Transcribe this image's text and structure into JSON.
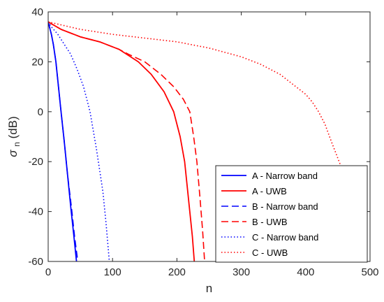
{
  "chart_data": {
    "type": "line",
    "xlabel": "n",
    "ylabel": {
      "main": "σ",
      "sub": "n",
      "suffix": "(dB)"
    },
    "xlim": [
      0,
      500
    ],
    "ylim": [
      -60,
      40
    ],
    "xticks": [
      0,
      100,
      200,
      300,
      400,
      500
    ],
    "yticks": [
      -60,
      -40,
      -20,
      0,
      20,
      40
    ],
    "grid": false,
    "legend_position": "lower-right",
    "series": [
      {
        "name": "A - Narrow band",
        "color": "#0000FF",
        "style": "solid",
        "x": [
          0,
          2,
          5,
          8,
          12,
          16,
          20,
          25,
          30,
          35,
          40,
          44
        ],
        "y": [
          36,
          34,
          31,
          27,
          20,
          10,
          0,
          -12,
          -25,
          -38,
          -50,
          -60
        ]
      },
      {
        "name": "A - UWB",
        "color": "#FF0000",
        "style": "solid",
        "x": [
          0,
          20,
          50,
          80,
          110,
          140,
          160,
          180,
          195,
          205,
          212,
          216,
          220,
          224,
          227
        ],
        "y": [
          36,
          33,
          30,
          28,
          25,
          20,
          15,
          8,
          0,
          -10,
          -20,
          -30,
          -40,
          -50,
          -60
        ]
      },
      {
        "name": "B - Narrow band",
        "color": "#0000FF",
        "style": "dashed",
        "x": [
          0,
          2,
          5,
          8,
          12,
          16,
          20,
          25,
          30,
          36,
          41,
          46
        ],
        "y": [
          36,
          34,
          31,
          27,
          20,
          10,
          0,
          -12,
          -25,
          -38,
          -50,
          -60
        ]
      },
      {
        "name": "B - UWB",
        "color": "#FF0000",
        "style": "dashed",
        "x": [
          0,
          20,
          50,
          80,
          110,
          125,
          150,
          175,
          195,
          210,
          220,
          226,
          231,
          236,
          240,
          243
        ],
        "y": [
          36,
          33,
          30,
          28,
          25,
          23,
          20,
          15,
          10,
          5,
          0,
          -10,
          -20,
          -35,
          -48,
          -60
        ]
      },
      {
        "name": "C - Narrow band",
        "color": "#0000FF",
        "style": "dotted",
        "x": [
          0,
          5,
          15,
          25,
          35,
          45,
          55,
          65,
          75,
          85,
          90,
          95
        ],
        "y": [
          36,
          34,
          31,
          27,
          23,
          17,
          10,
          0,
          -15,
          -32,
          -45,
          -60
        ]
      },
      {
        "name": "C - UWB",
        "color": "#FF0000",
        "style": "dotted",
        "x": [
          0,
          50,
          100,
          150,
          200,
          250,
          300,
          330,
          360,
          385,
          400,
          410,
          420,
          430,
          440,
          455,
          465,
          475,
          482,
          485
        ],
        "y": [
          36,
          33,
          31,
          29.5,
          28,
          25.5,
          22,
          19,
          15,
          10,
          7,
          4,
          0,
          -5,
          -12,
          -22,
          -32,
          -42,
          -52,
          -60
        ]
      }
    ]
  }
}
